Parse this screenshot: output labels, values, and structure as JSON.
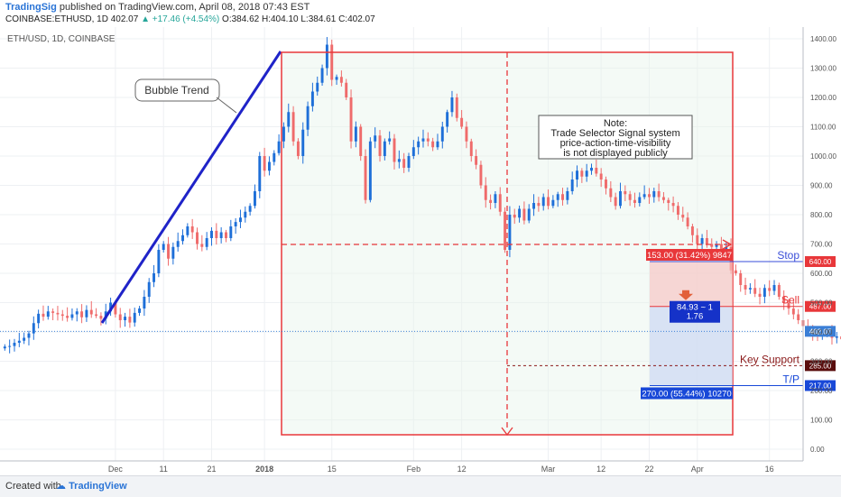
{
  "header": {
    "brand": "TradingSig",
    "published": "published on TradingView.com, April 08, 2018 07:43 EST",
    "symbol": "COINBASE:ETHUSD, 1D",
    "last": "402.07",
    "change": "+17.46 (+4.54%)",
    "open": "O:384.62",
    "high": "H:404.10",
    "low": "L:384.61",
    "close": "C:402.07"
  },
  "footer": {
    "created_with": "Created with",
    "logo_text": "TradingView"
  },
  "colors": {
    "up": "#26a69a",
    "down": "#ef5350",
    "trend": "#1f23c8",
    "box": "#e8373a",
    "target": "#1848d8"
  },
  "chart_data": {
    "type": "candlestick",
    "legend_label": "ETH/USD, 1D, COINBASE",
    "y_ticks": [
      0,
      100,
      200,
      300,
      400,
      500,
      600,
      700,
      800,
      900,
      1000,
      1100,
      1200,
      1300,
      1400
    ],
    "y_tick_labels": [
      "0.00",
      "100.00",
      "200.00",
      "300.00",
      "400.00",
      "500.00",
      "600.00",
      "700.00",
      "800.00",
      "900.00",
      "1000.00",
      "1100.00",
      "1200.00",
      "1300.00",
      "1400.00"
    ],
    "ylim": [
      -40,
      1440
    ],
    "x_tick_labels": [
      "Dec",
      "11",
      "21",
      "2018",
      "15",
      "Feb",
      "12",
      "Mar",
      "12",
      "22",
      "Apr",
      "16"
    ],
    "x_tick_days": [
      0,
      10,
      20,
      31,
      45,
      62,
      72,
      90,
      101,
      111,
      121,
      136
    ],
    "x_day_range": [
      -24,
      143
    ],
    "close_series": {
      "start_day": -23,
      "values": [
        350,
        352,
        363,
        370,
        380,
        395,
        430,
        462,
        452,
        470,
        465,
        460,
        455,
        448,
        460,
        470,
        450,
        475,
        460,
        455,
        445,
        470,
        500,
        460,
        440,
        452,
        432,
        465,
        480,
        520,
        570,
        600,
        680,
        700,
        650,
        690,
        710,
        730,
        760,
        740,
        700,
        690,
        720,
        745,
        720,
        740,
        720,
        760,
        775,
        790,
        810,
        830,
        880,
        1000,
        950,
        980,
        1010,
        1050,
        1100,
        1150,
        1050,
        1000,
        1090,
        1170,
        1220,
        1250,
        1300,
        1380,
        1260,
        1270,
        1250,
        1200,
        1050,
        1100,
        1000,
        850,
        1050,
        1070,
        1000,
        1050,
        1060,
        980,
        990,
        960,
        1000,
        1030,
        1050,
        1060,
        1050,
        1030,
        1050,
        1100,
        1150,
        1200,
        1130,
        1100,
        1050,
        1000,
        970,
        900,
        850,
        840,
        870,
        810,
        680,
        800,
        790,
        820,
        780,
        820,
        840,
        830,
        860,
        830,
        850,
        870,
        850,
        880,
        920,
        950,
        930,
        950,
        960,
        940,
        920,
        890,
        860,
        830,
        880,
        870,
        850,
        840,
        860,
        870,
        860,
        880,
        860,
        850,
        840,
        830,
        800,
        790,
        760,
        730,
        700,
        720,
        700,
        690,
        700,
        680,
        690,
        610,
        600,
        560,
        545,
        550,
        530,
        520,
        550,
        540,
        560,
        520,
        500,
        480,
        460,
        440,
        420,
        410,
        390,
        385,
        390,
        400,
        380,
        385,
        375,
        402
      ],
      "note": ""
    }
  },
  "annotations": {
    "bubble_trend": "Bubble Trend",
    "note_lines": [
      "Note:",
      "Trade Selector Signal system",
      "price-action-time-visibility",
      "is not displayed publicly"
    ],
    "stop_label": "Stop",
    "sell_label": "Sell",
    "key_support_label": "Key Support",
    "tp_label": "T/P",
    "risk_box_label": "153.00 (31.42%) 9847",
    "reward_box_label": "270.00 (55.44%) 10270",
    "ratio_line1": "84.93 ~ 1",
    "ratio_line2": "1.76",
    "price_stop": "640.00",
    "price_sell": "487.00",
    "price_last": "402.07",
    "price_support": "285.00",
    "price_tp": "217.00",
    "stop_value": 640,
    "sell_value": 487,
    "support_value": 285,
    "tp_value": 217,
    "last_value": 402.07
  }
}
